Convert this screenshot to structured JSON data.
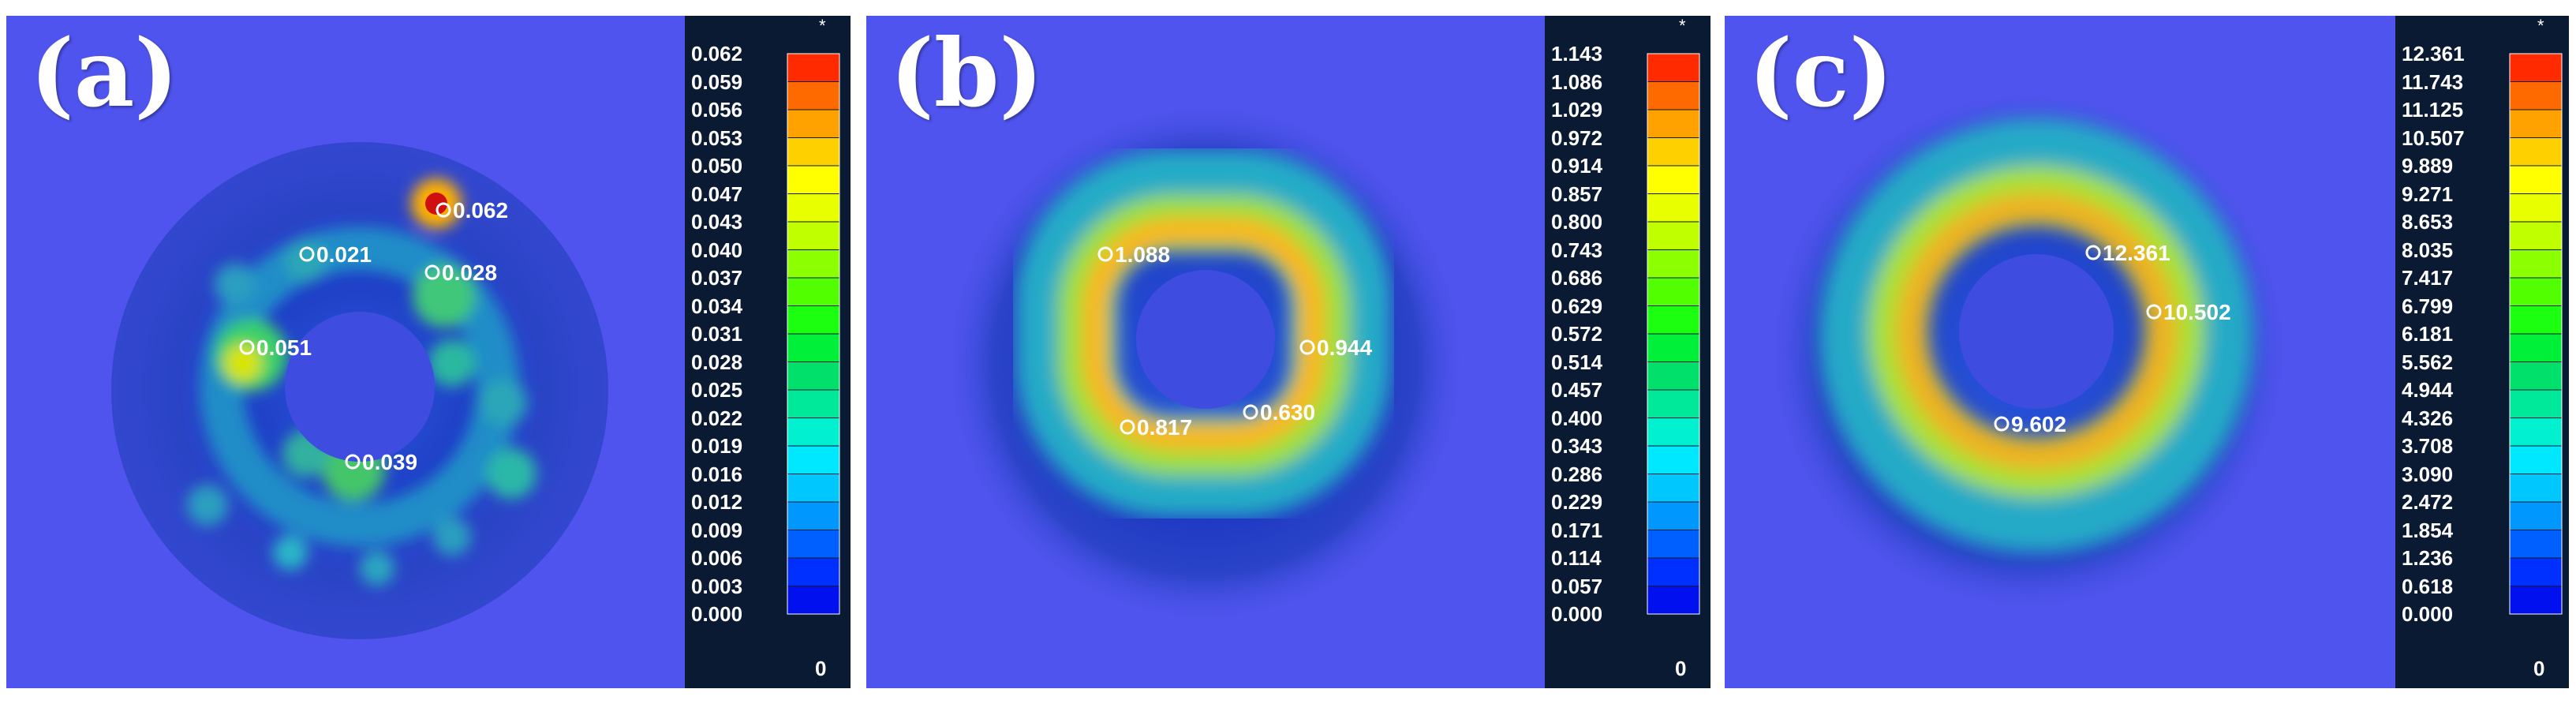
{
  "panels": [
    {
      "label": "(a)",
      "star": "*",
      "zero": "0",
      "ticks": [
        "0.062",
        "0.059",
        "0.056",
        "0.053",
        "0.050",
        "0.047",
        "0.043",
        "0.040",
        "0.037",
        "0.034",
        "0.031",
        "0.028",
        "0.025",
        "0.022",
        "0.019",
        "0.016",
        "0.012",
        "0.009",
        "0.006",
        "0.003",
        "0.000"
      ],
      "markers": [
        {
          "value": "0.062"
        },
        {
          "value": "0.021"
        },
        {
          "value": "0.028"
        },
        {
          "value": "0.051"
        },
        {
          "value": "0.039"
        }
      ]
    },
    {
      "label": "(b)",
      "star": "*",
      "zero": "0",
      "ticks": [
        "1.143",
        "1.086",
        "1.029",
        "0.972",
        "0.914",
        "0.857",
        "0.800",
        "0.743",
        "0.686",
        "0.629",
        "0.572",
        "0.514",
        "0.457",
        "0.400",
        "0.343",
        "0.286",
        "0.229",
        "0.171",
        "0.114",
        "0.057",
        "0.000"
      ],
      "markers": [
        {
          "value": "1.088"
        },
        {
          "value": "0.944"
        },
        {
          "value": "0.817"
        },
        {
          "value": "0.630"
        }
      ]
    },
    {
      "label": "(c)",
      "star": "*",
      "zero": "0",
      "ticks": [
        "12.361",
        "11.743",
        "11.125",
        "10.507",
        "9.889",
        "9.271",
        "8.653",
        "8.035",
        "7.417",
        "6.799",
        "6.181",
        "5.562",
        "4.944",
        "4.326",
        "3.708",
        "3.090",
        "2.472",
        "1.854",
        "1.236",
        "0.618",
        "0.000"
      ],
      "markers": [
        {
          "value": "12.361"
        },
        {
          "value": "10.502"
        },
        {
          "value": "9.602"
        }
      ]
    }
  ],
  "colors": {
    "background": "#4f54ee",
    "scale": [
      "#ff0000",
      "#ff2a00",
      "#ff6a00",
      "#ffa200",
      "#ffd000",
      "#ffff00",
      "#e8ff00",
      "#c0ff00",
      "#8cff00",
      "#52ff00",
      "#1cff10",
      "#00f03a",
      "#00e06a",
      "#00e89a",
      "#00f0d0",
      "#00e8ff",
      "#00c8ff",
      "#0098ff",
      "#0060ff",
      "#0030ff",
      "#0010ee"
    ]
  }
}
